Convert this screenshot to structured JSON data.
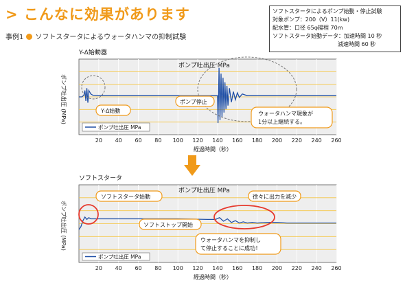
{
  "header": {
    "title": "> こんなに効果があります",
    "case_label": "事例1",
    "case_text": "ソフトスタータによるウォータハンマの抑制試験"
  },
  "specs": {
    "title": "ソフトスタータによるポンプ始動・停止試験",
    "lines": [
      "対象ポンプ：200（V）11(kw)",
      "配水管：口径 65φ揚程 70m",
      "ソフトスタータ始動データ：加速時間 10 秒",
      "減速時間 60 秒"
    ]
  },
  "colors": {
    "accent": "#f09a1a",
    "line": "#1f4fa6",
    "highlight": "#e63a2e",
    "bg": "#eeeeee"
  },
  "chart_data": [
    {
      "type": "line",
      "chart_label": "Y-Δ始動器",
      "title": "ポンプ吐出圧 MPa",
      "xlabel": "経過時間（秒）",
      "ylabel": "ポンプ吐出圧 (MPa)",
      "xlim": [
        0,
        260
      ],
      "xticks": [
        20,
        40,
        60,
        80,
        100,
        120,
        140,
        160,
        180,
        200,
        220,
        240,
        260
      ],
      "grid": true,
      "legend": [
        "ポンプ吐出圧 MPa"
      ],
      "series": [
        {
          "name": "ポンプ吐出圧 MPa",
          "x": [
            0,
            3,
            5,
            6,
            7,
            8,
            9,
            10,
            12,
            14,
            20,
            60,
            100,
            140,
            140.5,
            141.5,
            142.5,
            143.5,
            144.5,
            145.5,
            146.5,
            147.5,
            148.5,
            149.5,
            150.5,
            152,
            154,
            156,
            158,
            160,
            162,
            165,
            170,
            180,
            200,
            260
          ],
          "y": [
            0.65,
            0.65,
            0.68,
            0.76,
            0.58,
            0.8,
            0.55,
            0.76,
            0.7,
            0.68,
            0.67,
            0.67,
            0.67,
            0.67,
            0.2,
            1.15,
            0.25,
            1.05,
            0.3,
            0.98,
            0.38,
            0.9,
            0.44,
            0.84,
            0.5,
            0.8,
            0.56,
            0.74,
            0.6,
            0.72,
            0.64,
            0.7,
            0.67,
            0.67,
            0.67,
            0.67
          ]
        }
      ],
      "annotations": [
        "Y-Δ始動",
        "ポンプ停止",
        "ウォータハンマ現象が\n1分以上継続する。"
      ]
    },
    {
      "type": "line",
      "chart_label": "ソフトスタータ",
      "title": "ポンプ吐出圧 MPa",
      "xlabel": "経過時間（秒）",
      "ylabel": "ポンプ吐出圧 (MPa)",
      "xlim": [
        0,
        260
      ],
      "xticks": [
        20,
        40,
        60,
        80,
        100,
        120,
        140,
        160,
        180,
        200,
        220,
        240,
        260
      ],
      "grid": true,
      "legend": [
        "ポンプ吐出圧 MPa"
      ],
      "series": [
        {
          "name": "ポンプ吐出圧 MPa",
          "x": [
            0,
            2,
            4,
            6,
            8,
            10,
            12,
            20,
            60,
            100,
            130,
            138,
            142,
            146,
            150,
            154,
            158,
            162,
            166,
            170,
            175,
            180,
            190,
            200,
            210,
            260
          ],
          "y": [
            0.55,
            0.6,
            0.7,
            0.76,
            0.72,
            0.75,
            0.73,
            0.73,
            0.73,
            0.73,
            0.72,
            0.72,
            0.75,
            0.69,
            0.73,
            0.67,
            0.7,
            0.66,
            0.68,
            0.66,
            0.67,
            0.66,
            0.67,
            0.67,
            0.66,
            0.66
          ]
        }
      ],
      "annotations": [
        "ソフトスタータ始動",
        "ソフトストップ開始",
        "徐々に出力を減少",
        "ウォータハンマを抑制し\nて停止することに成功！"
      ]
    }
  ]
}
